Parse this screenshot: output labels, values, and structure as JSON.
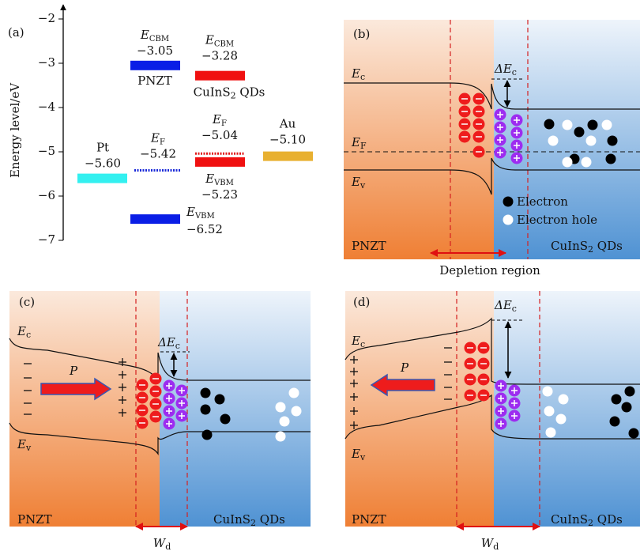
{
  "panel_a": {
    "label": "(a)",
    "axis_label": "Energy level/eV",
    "ylim": [
      -7,
      -2
    ],
    "yticks": [
      {
        "value": -2,
        "label": "−2"
      },
      {
        "value": -3,
        "label": "−3"
      },
      {
        "value": -4,
        "label": "−4"
      },
      {
        "value": -5,
        "label": "−5"
      },
      {
        "value": -6,
        "label": "−6"
      },
      {
        "value": -7,
        "label": "−7"
      }
    ],
    "levels": [
      {
        "symbol": "E",
        "subscript": "CBM",
        "value": -3.05,
        "value_label": "−3.05",
        "material": "PNZT",
        "color": "#0a1ee6",
        "style": "solid"
      },
      {
        "symbol": "E",
        "subscript": "VBM",
        "value": -6.52,
        "value_label": "−6.52",
        "color": "#0a1ee6",
        "style": "solid"
      },
      {
        "symbol": "E",
        "subscript": "F",
        "value": -5.42,
        "value_label": "−5.42",
        "color": "#1a2ad8",
        "style": "dotted"
      },
      {
        "symbol": "E",
        "subscript": "CBM",
        "value": -3.28,
        "value_label": "−3.28",
        "material": "CuInS₂ QDs",
        "color": "#f01010",
        "style": "solid"
      },
      {
        "symbol": "E",
        "subscript": "F",
        "value": -5.04,
        "value_label": "−5.04",
        "color": "#e01818",
        "style": "dotted"
      },
      {
        "symbol": "E",
        "subscript": "VBM",
        "value": -5.23,
        "value_label": "−5.23",
        "color": "#f01010",
        "style": "solid"
      },
      {
        "material": "Pt",
        "value": -5.6,
        "value_label": "−5.60",
        "color": "#33f0f0",
        "style": "solid"
      },
      {
        "material": "Au",
        "value": -5.1,
        "value_label": "−5.10",
        "color": "#e8b030",
        "style": "solid"
      }
    ]
  },
  "panel_b": {
    "label": "(b)",
    "ec": {
      "main": "E",
      "sub": "c"
    },
    "ef": {
      "main": "E",
      "sub": "F"
    },
    "ev": {
      "main": "E",
      "sub": "v"
    },
    "delta_ec": {
      "main": "ΔE",
      "sub": "c"
    },
    "left_material": "PNZT",
    "right_material": "CuInS₂ QDs",
    "legend": [
      "Electron",
      "Electron hole"
    ],
    "region_label": "Depletion region"
  },
  "panel_c": {
    "label": "(c)",
    "ec": {
      "main": "E",
      "sub": "c"
    },
    "ev": {
      "main": "E",
      "sub": "v"
    },
    "delta_ec": {
      "main": "ΔE",
      "sub": "c"
    },
    "polarization": "P",
    "left_material": "PNZT",
    "right_material": "CuInS₂ QDs",
    "width_label": {
      "main": "W",
      "sub": "d"
    }
  },
  "panel_d": {
    "label": "(d)",
    "ec": {
      "main": "E",
      "sub": "c"
    },
    "ev": {
      "main": "E",
      "sub": "v"
    },
    "delta_ec": {
      "main": "ΔE",
      "sub": "c"
    },
    "polarization": "P",
    "left_material": "PNZT",
    "right_material": "CuInS₂ QDs",
    "width_label": {
      "main": "W",
      "sub": "d"
    }
  }
}
